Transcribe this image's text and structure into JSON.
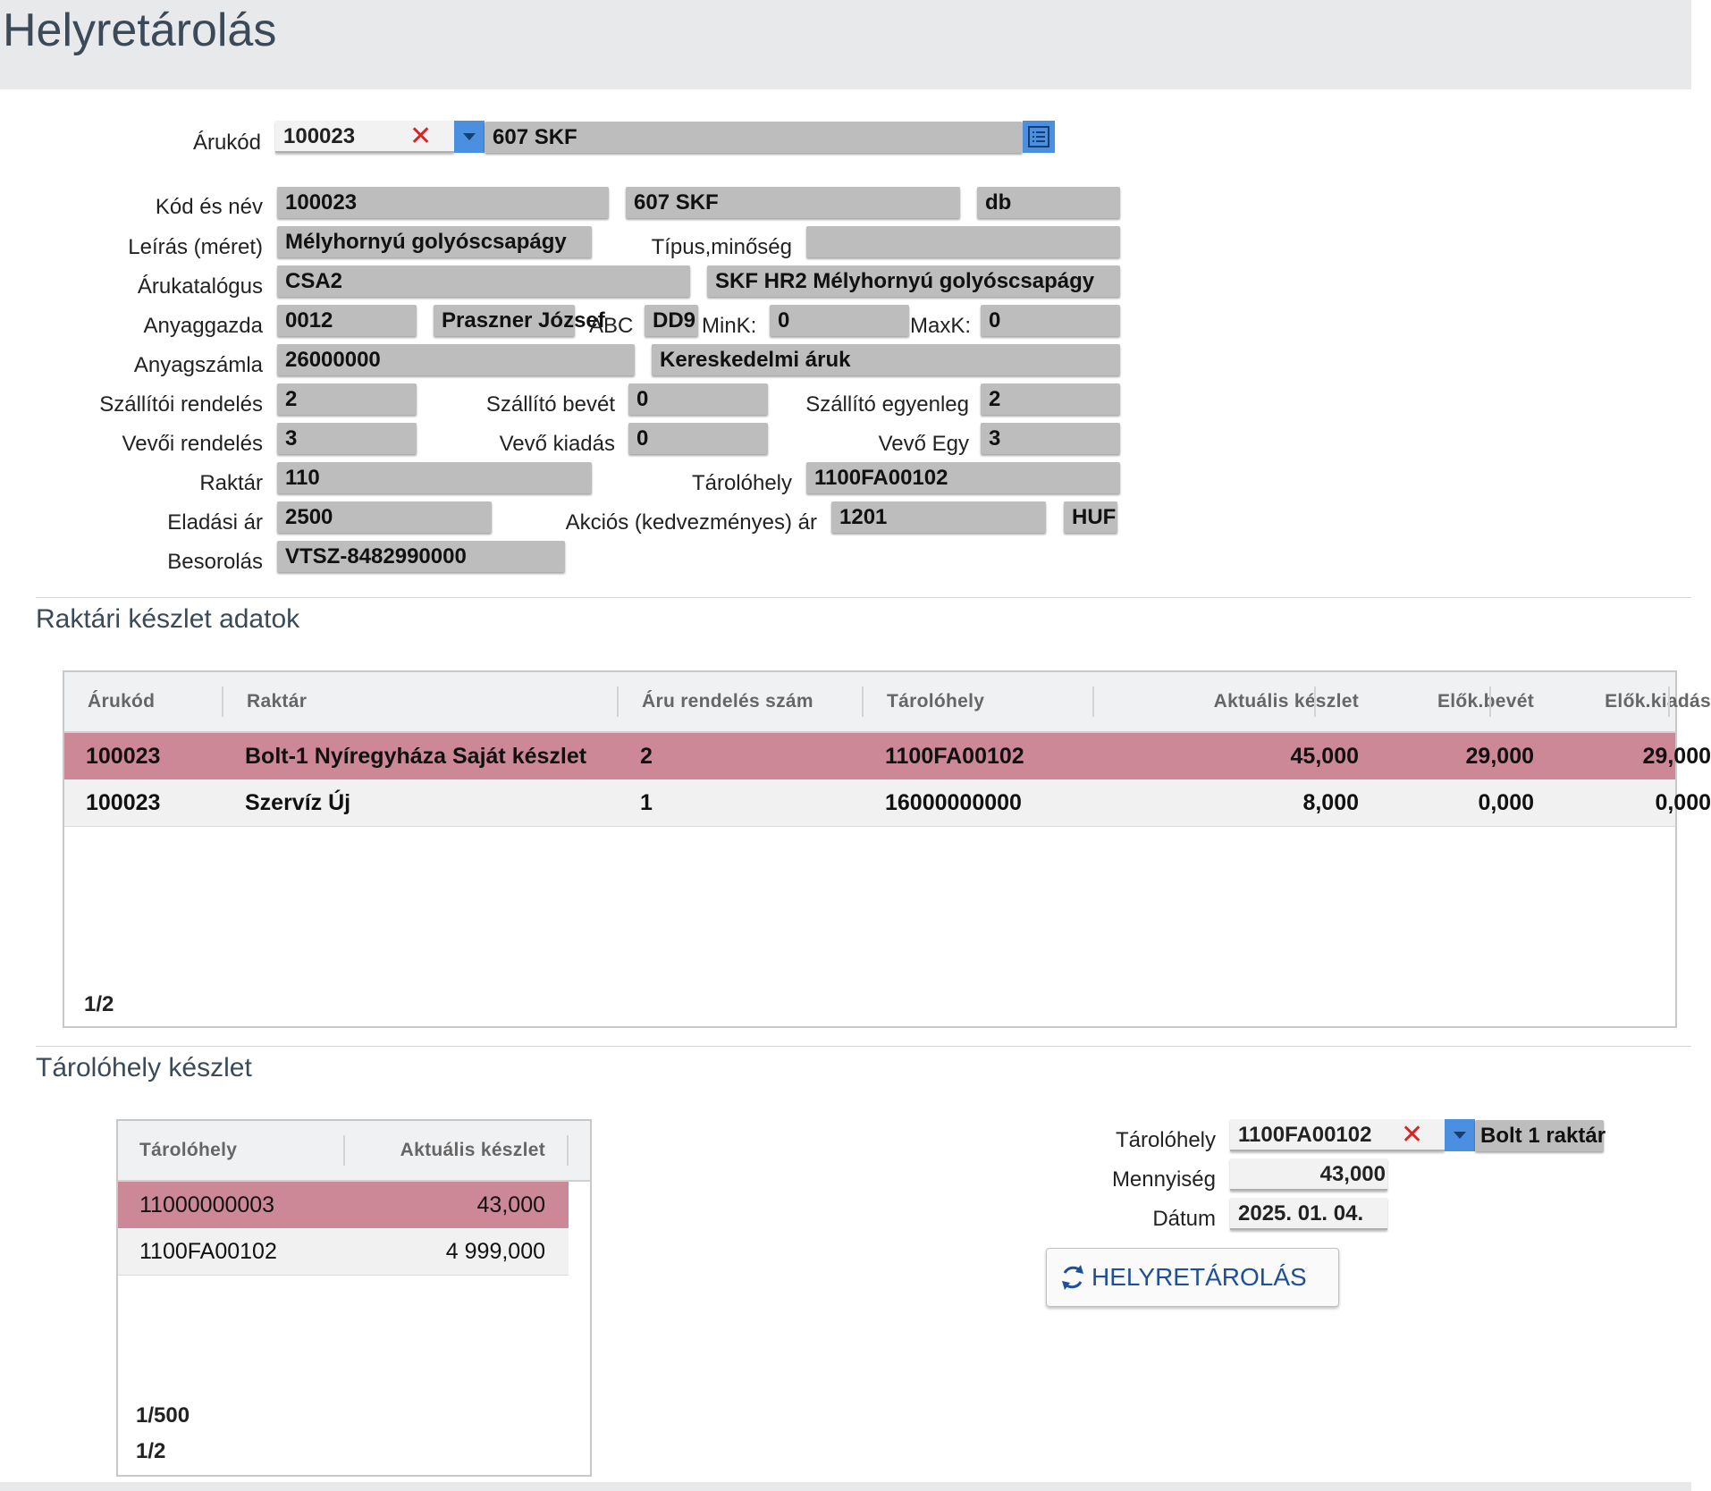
{
  "page": {
    "title": "Helyretárolás"
  },
  "product": {
    "code_label": "Árukód",
    "code_value": "100023",
    "name_value": "607 SKF",
    "kod_nev_label": "Kód és név",
    "kod_value": "100023",
    "nev_value": "607 SKF",
    "unit_value": "db",
    "leiras_label": "Leírás (méret)",
    "leiras_value": "Mélyhornyú golyóscsapágy",
    "tipus_label": "Típus,minőség",
    "tipus_value": "",
    "katalogus_label": "Árukatalógus",
    "katalogus_code": "CSA2",
    "katalogus_name": "SKF HR2 Mélyhornyú golyóscsapágy",
    "anyaggazda_label": "Anyaggazda",
    "anyaggazda_code": "0012",
    "anyaggazda_name": "Praszner József",
    "abc_label": "ABC",
    "abc_value": "DD9",
    "mink_label": "MinK:",
    "mink_value": "0",
    "maxk_label": "MaxK:",
    "maxk_value": "0",
    "anyagszamla_label": "Anyagszámla",
    "anyagszamla_code": "26000000",
    "anyagszamla_name": "Kereskedelmi áruk",
    "szall_rend_label": "Szállítói rendelés",
    "szall_rend_value": "2",
    "szall_bevet_label": "Szállító bevét",
    "szall_bevet_value": "0",
    "szall_egy_label": "Szállító egyenleg",
    "szall_egy_value": "2",
    "vevo_rend_label": "Vevői rendelés",
    "vevo_rend_value": "3",
    "vevo_kiadas_label": "Vevő kiadás",
    "vevo_kiadas_value": "0",
    "vevo_egy_label": "Vevő Egy",
    "vevo_egy_value": "3",
    "raktar_label": "Raktár",
    "raktar_value": "110",
    "tarolohely_label": "Tárolóhely",
    "tarolohely_value": "1100FA00102",
    "eladasi_label": "Eladási ár",
    "eladasi_value": "2500",
    "akcios_label": "Akciós (kedvezményes) ár",
    "akcios_value": "1201",
    "currency": "HUF",
    "besorolas_label": "Besorolás",
    "besorolas_value": "VTSZ-8482990000"
  },
  "stock": {
    "title": "Raktári készlet adatok",
    "columns": [
      "Árukód",
      "Raktár",
      "Áru rendelés szám",
      "Tárolóhely",
      "Aktuális készlet",
      "Elők.bevét",
      "Elők.kiadás"
    ],
    "rows": [
      [
        "100023",
        "Bolt-1 Nyíregyháza Saját készlet",
        "2",
        "1100FA00102",
        "45,000",
        "29,000",
        "29,000"
      ],
      [
        "100023",
        "Szervíz Új",
        "1",
        "16000000000",
        "8,000",
        "0,000",
        "0,000"
      ]
    ],
    "pager": "1/2"
  },
  "location_stock": {
    "title": "Tárolóhely készlet",
    "columns": [
      "Tárolóhely",
      "Aktuális készlet"
    ],
    "rows": [
      [
        "11000000003",
        "43,000"
      ],
      [
        "1100FA00102",
        "4 999,000"
      ]
    ],
    "pager1": "1/500",
    "pager2": "1/2"
  },
  "relocate_form": {
    "tarolohely_label": "Tárolóhely",
    "tarolohely_value": "1100FA00102",
    "tarolohely_name": "Bolt 1 raktár",
    "mennyiseg_label": "Mennyiség",
    "mennyiseg_value": "43,000",
    "datum_label": "Dátum",
    "datum_value": "2025. 01. 04.",
    "button_label": "HELYRETÁROLÁS"
  },
  "colors": {
    "selected_row": "#cd8898",
    "accent": "#4a8fe0",
    "clear": "#d22222",
    "button_text": "#1d4f9a"
  },
  "icons": [
    "clear-icon",
    "dropdown-arrow-icon",
    "list-icon",
    "refresh-icon"
  ]
}
